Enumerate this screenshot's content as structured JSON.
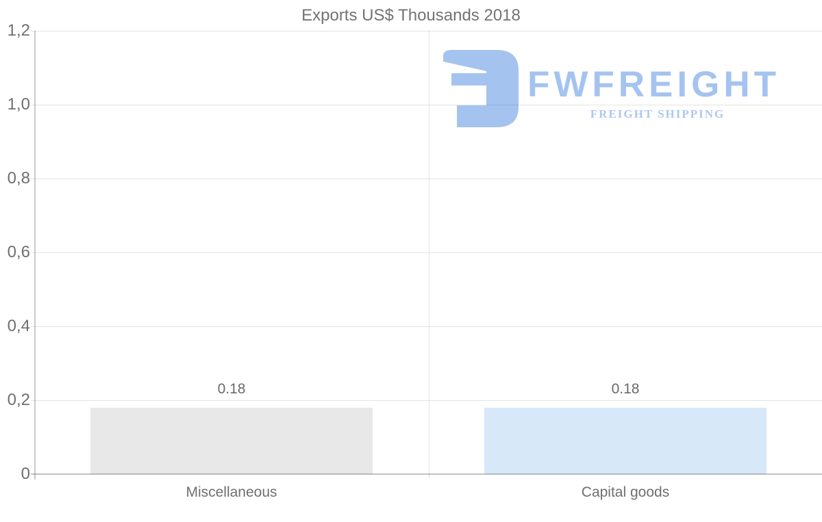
{
  "chart_data": {
    "type": "bar",
    "title": "Exports US$ Thousands 2018",
    "categories": [
      "Miscellaneous",
      "Capital goods"
    ],
    "values": [
      0.18,
      0.18
    ],
    "value_labels": [
      "0.18",
      "0.18"
    ],
    "series_colors": [
      "#e8e8e8",
      "#d7e8f8"
    ],
    "xlabel": "",
    "ylabel": "",
    "ylim": [
      0,
      1.2
    ],
    "y_ticks": [
      {
        "value": 0,
        "label": "0"
      },
      {
        "value": 0.2,
        "label": "0,2"
      },
      {
        "value": 0.4,
        "label": "0,4"
      },
      {
        "value": 0.6,
        "label": "0,6"
      },
      {
        "value": 0.8,
        "label": "0,8"
      },
      {
        "value": 1.0,
        "label": "1,0"
      },
      {
        "value": 1.2,
        "label": "1,2"
      }
    ],
    "grid": "horizontal gridlines on, vertical category divider",
    "legend_position": "none"
  },
  "watermark": {
    "brand": "FWFREIGHT",
    "tagline": "FREIGHT SHIPPING",
    "logo_color": "#a5c3ef",
    "tagline_color": "#abc8f1"
  },
  "style_colors": {
    "title_text": "#737373",
    "axis_text": "#6f6f6f",
    "gridline": "#e4e4e4",
    "axis_line": "#c3c3c3",
    "bar_miscellaneous": "#e8e8e8",
    "bar_capital_goods": "#d7e8f8"
  }
}
